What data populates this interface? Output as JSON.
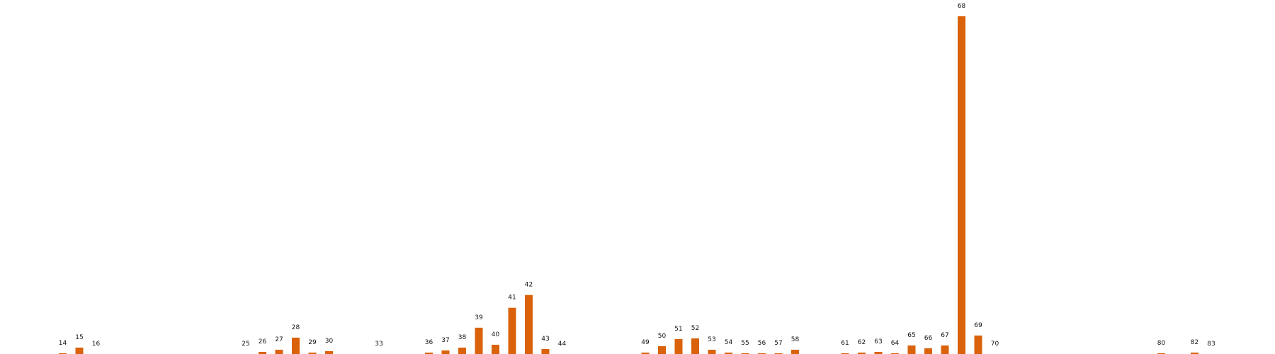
{
  "chart_data": {
    "type": "bar",
    "title": "",
    "xlabel": "",
    "ylabel": "",
    "ylim": [
      0,
      475
    ],
    "grid": false,
    "bar_color": "#d9620b",
    "categories": [
      "14",
      "15",
      "16",
      "25",
      "26",
      "27",
      "28",
      "29",
      "30",
      "33",
      "36",
      "37",
      "38",
      "39",
      "40",
      "41",
      "42",
      "43",
      "44",
      "49",
      "50",
      "51",
      "52",
      "53",
      "54",
      "55",
      "56",
      "57",
      "58",
      "61",
      "62",
      "63",
      "64",
      "65",
      "66",
      "67",
      "68",
      "69",
      "70",
      "80",
      "82",
      "83"
    ],
    "values": [
      1,
      9,
      0,
      0,
      3,
      6,
      23,
      2,
      4,
      0,
      2,
      5,
      9,
      37,
      13,
      65,
      83,
      7,
      0,
      2,
      11,
      21,
      22,
      6,
      2,
      1,
      1,
      1,
      6,
      1,
      2,
      3,
      1,
      12,
      8,
      12,
      475,
      26,
      0,
      1,
      2,
      0
    ]
  }
}
